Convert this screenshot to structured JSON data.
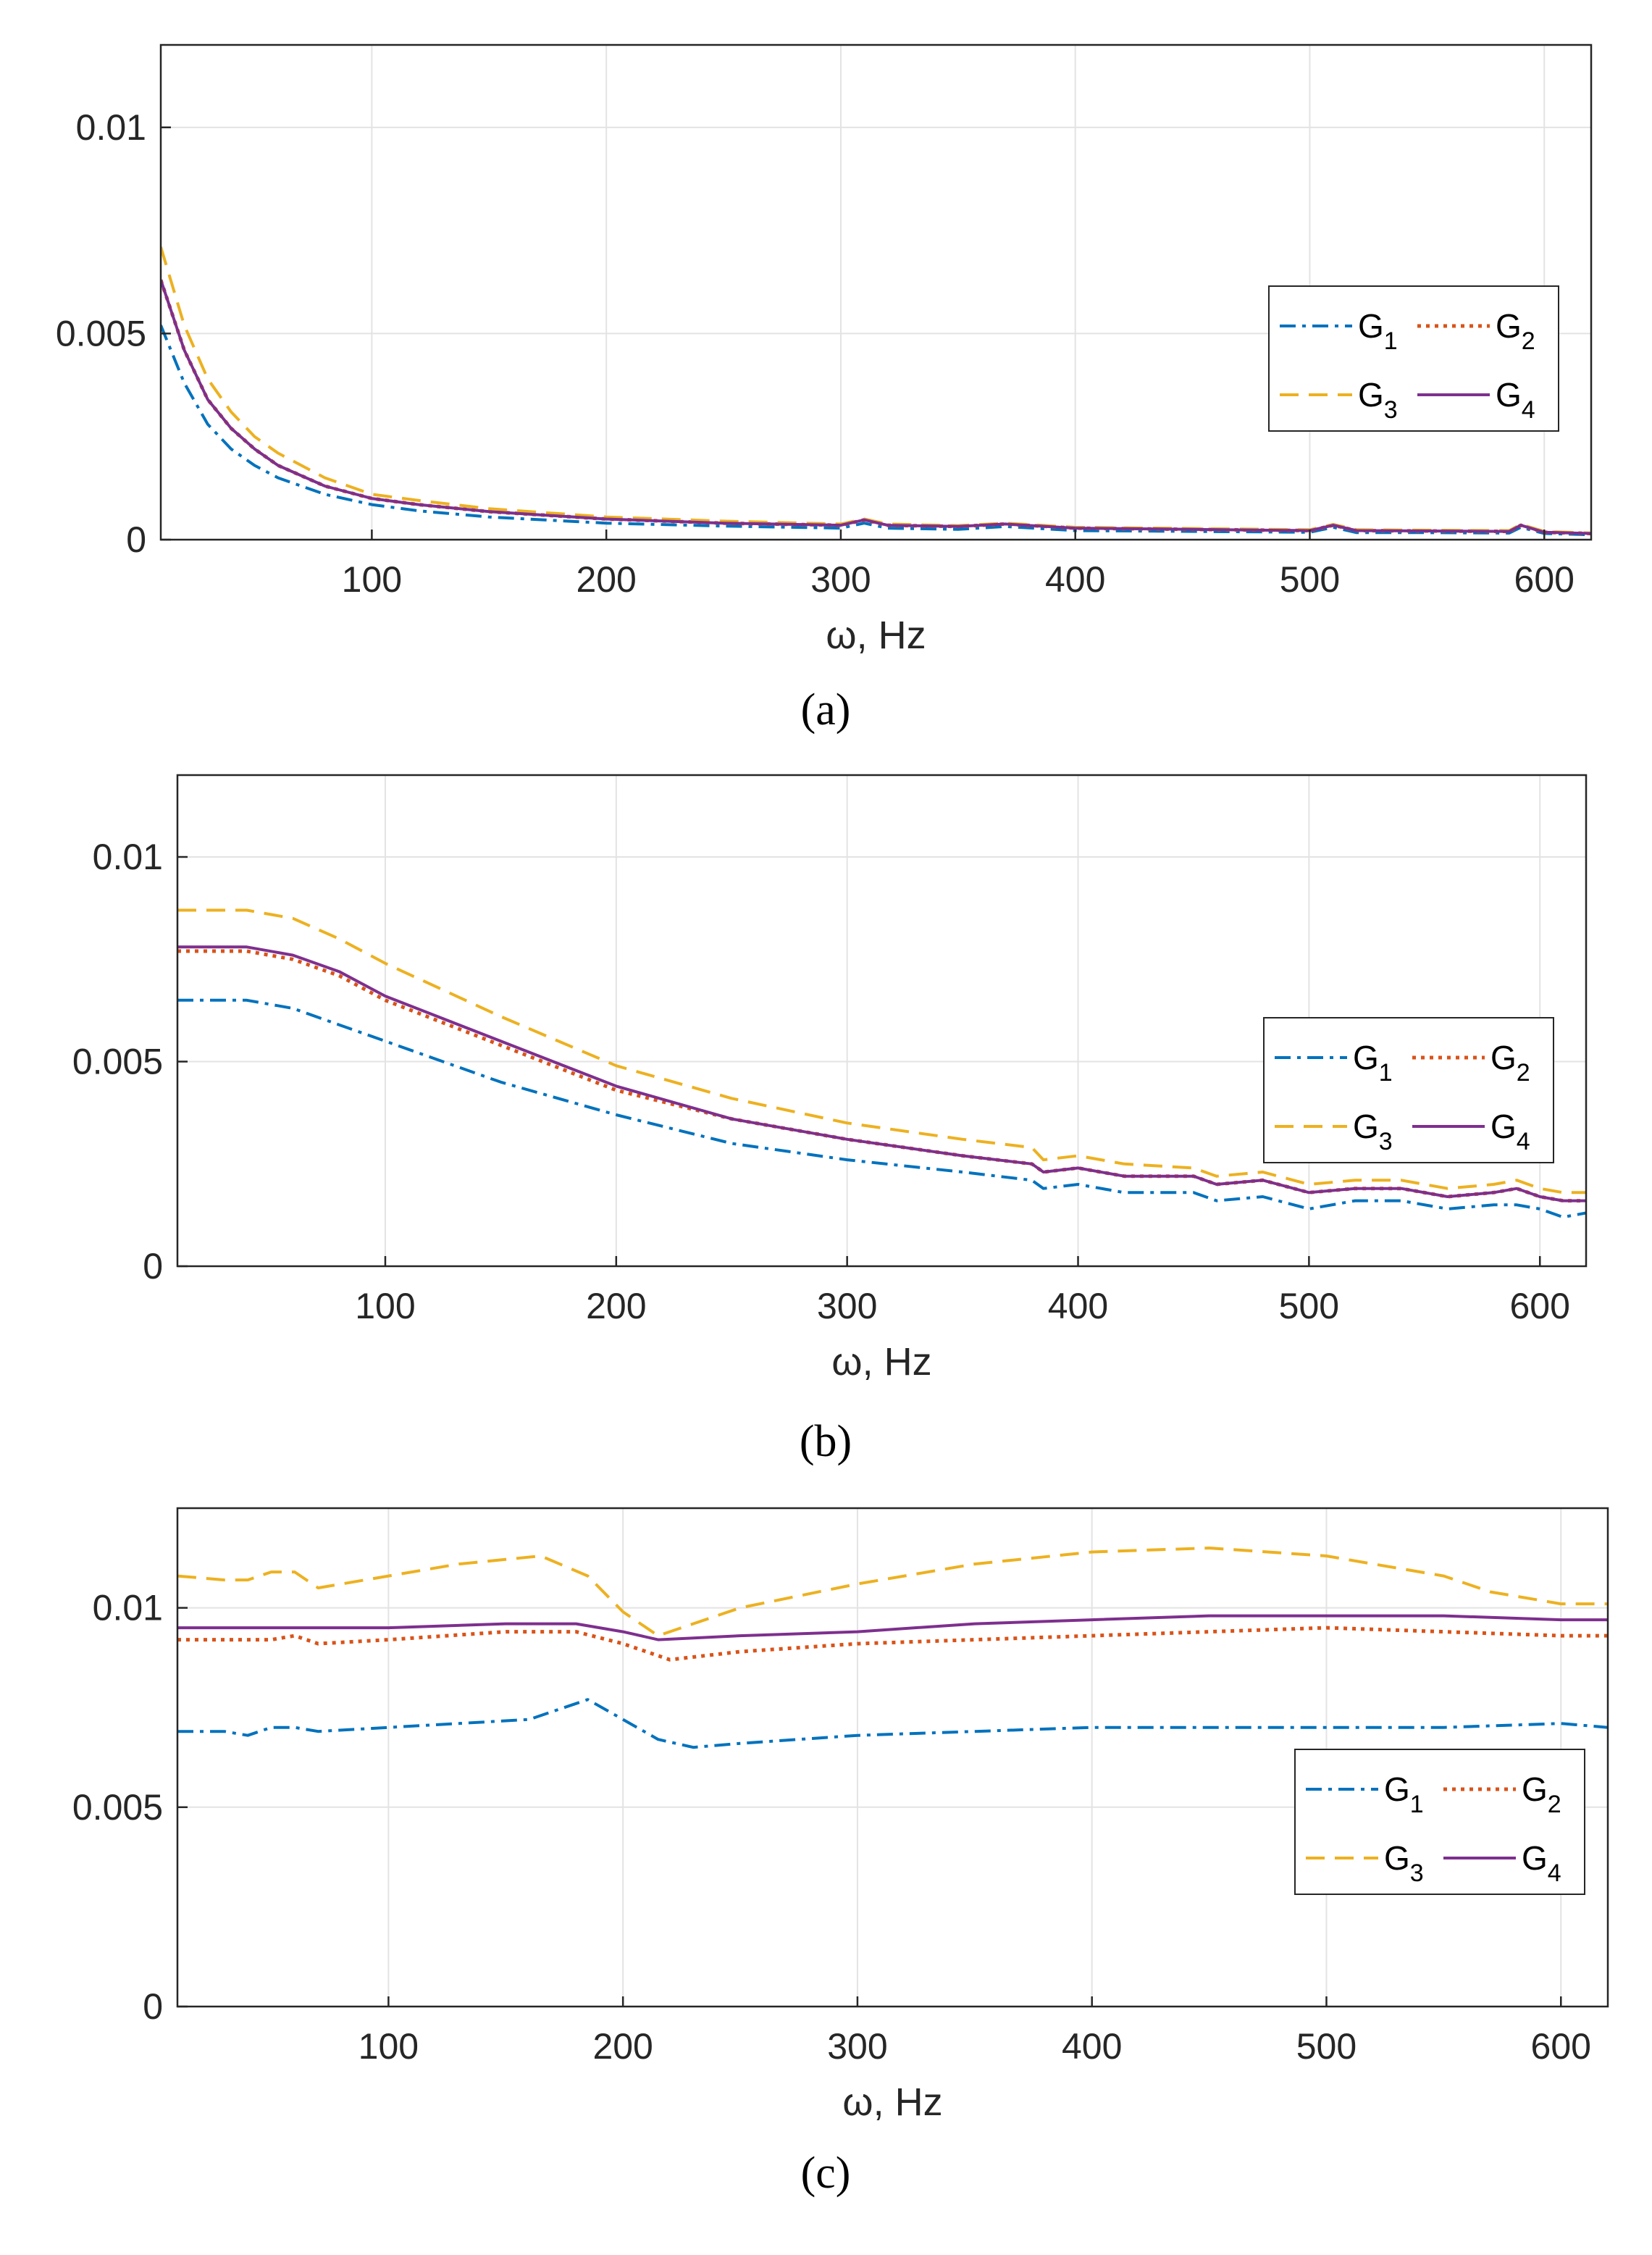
{
  "figure": {
    "captions": [
      "(a)",
      "(b)",
      "(c)"
    ],
    "x_unit": "Hz"
  },
  "chart_data": [
    {
      "type": "line",
      "panel": "a",
      "caption": "(a)",
      "xlabel": "ω, Hz",
      "xlim": [
        10,
        620
      ],
      "ylim": [
        0,
        0.012
      ],
      "xticks": [
        100,
        200,
        300,
        400,
        500,
        600
      ],
      "yticks": [
        0,
        0.005,
        0.01
      ],
      "ytick_labels": [
        "0",
        "0.005",
        "0.01"
      ],
      "grid": true,
      "legend_position": "right",
      "series": [
        {
          "name": "G",
          "sub": "1",
          "color": "#0072BD",
          "style": "dashdot",
          "x": [
            10,
            20,
            30,
            40,
            50,
            60,
            80,
            100,
            120,
            150,
            200,
            250,
            300,
            310,
            320,
            350,
            370,
            400,
            450,
            500,
            510,
            520,
            550,
            585,
            590,
            600,
            620
          ],
          "y": [
            0.0052,
            0.0038,
            0.0028,
            0.0022,
            0.0018,
            0.0015,
            0.0011,
            0.00085,
            0.0007,
            0.00055,
            0.0004,
            0.00033,
            0.00028,
            0.0004,
            0.00028,
            0.00025,
            0.00032,
            0.00022,
            0.0002,
            0.00018,
            0.0003,
            0.00017,
            0.00017,
            0.00016,
            0.0003,
            0.00015,
            0.00012
          ]
        },
        {
          "name": "G",
          "sub": "2",
          "color": "#D95319",
          "style": "dotted",
          "x": [
            10,
            20,
            30,
            40,
            50,
            60,
            80,
            100,
            120,
            150,
            200,
            250,
            300,
            310,
            320,
            350,
            370,
            400,
            450,
            500,
            510,
            520,
            550,
            585,
            590,
            600,
            620
          ],
          "y": [
            0.0063,
            0.0046,
            0.0034,
            0.0027,
            0.0022,
            0.0018,
            0.0013,
            0.001,
            0.00085,
            0.00068,
            0.0005,
            0.0004,
            0.00035,
            0.00048,
            0.00035,
            0.00032,
            0.00038,
            0.00028,
            0.00025,
            0.00022,
            0.00035,
            0.00022,
            0.00021,
            0.0002,
            0.00035,
            0.00018,
            0.00015
          ]
        },
        {
          "name": "G",
          "sub": "3",
          "color": "#EDB120",
          "style": "dashed",
          "x": [
            10,
            20,
            30,
            40,
            50,
            60,
            80,
            100,
            120,
            150,
            200,
            250,
            300,
            310,
            320,
            350,
            370,
            400,
            450,
            500,
            510,
            520,
            550,
            585,
            590,
            600,
            620
          ],
          "y": [
            0.0071,
            0.0052,
            0.0039,
            0.0031,
            0.0025,
            0.0021,
            0.0015,
            0.0011,
            0.00095,
            0.00075,
            0.00055,
            0.00045,
            0.00038,
            0.0005,
            0.00038,
            0.00034,
            0.0004,
            0.0003,
            0.00027,
            0.00024,
            0.00037,
            0.00024,
            0.00023,
            0.00022,
            0.00037,
            0.0002,
            0.00016
          ]
        },
        {
          "name": "G",
          "sub": "4",
          "color": "#7E2F8E",
          "style": "solid",
          "x": [
            10,
            20,
            30,
            40,
            50,
            60,
            80,
            100,
            120,
            150,
            200,
            250,
            300,
            310,
            320,
            350,
            370,
            400,
            450,
            500,
            510,
            520,
            550,
            585,
            590,
            600,
            620
          ],
          "y": [
            0.0063,
            0.0046,
            0.0034,
            0.0027,
            0.0022,
            0.0018,
            0.0013,
            0.001,
            0.00085,
            0.00068,
            0.0005,
            0.0004,
            0.00035,
            0.00048,
            0.00035,
            0.00032,
            0.00038,
            0.00028,
            0.00025,
            0.00022,
            0.00035,
            0.00022,
            0.00021,
            0.0002,
            0.00035,
            0.00018,
            0.00015
          ]
        }
      ]
    },
    {
      "type": "line",
      "panel": "b",
      "caption": "(b)",
      "xlabel": "ω, Hz",
      "xlim": [
        10,
        620
      ],
      "ylim": [
        0,
        0.012
      ],
      "xticks": [
        100,
        200,
        300,
        400,
        500,
        600
      ],
      "yticks": [
        0,
        0.005,
        0.01
      ],
      "ytick_labels": [
        "0",
        "0.005",
        "0.01"
      ],
      "grid": true,
      "legend_position": "right",
      "series": [
        {
          "name": "G",
          "sub": "1",
          "color": "#0072BD",
          "style": "dashdot",
          "x": [
            10,
            40,
            60,
            80,
            100,
            150,
            200,
            250,
            300,
            350,
            380,
            385,
            400,
            420,
            450,
            460,
            480,
            500,
            520,
            540,
            560,
            580,
            590,
            600,
            610,
            620
          ],
          "y": [
            0.0065,
            0.0065,
            0.0063,
            0.0059,
            0.0055,
            0.0045,
            0.0037,
            0.003,
            0.0026,
            0.0023,
            0.0021,
            0.0019,
            0.002,
            0.0018,
            0.0018,
            0.0016,
            0.0017,
            0.0014,
            0.0016,
            0.0016,
            0.0014,
            0.0015,
            0.0015,
            0.0014,
            0.0012,
            0.0013
          ]
        },
        {
          "name": "G",
          "sub": "2",
          "color": "#D95319",
          "style": "dotted",
          "x": [
            10,
            40,
            60,
            80,
            100,
            150,
            200,
            250,
            300,
            350,
            380,
            385,
            400,
            420,
            450,
            460,
            480,
            500,
            520,
            540,
            560,
            580,
            590,
            600,
            610,
            620
          ],
          "y": [
            0.0077,
            0.0077,
            0.0075,
            0.0071,
            0.0065,
            0.0054,
            0.0043,
            0.0036,
            0.0031,
            0.0027,
            0.0025,
            0.0023,
            0.0024,
            0.0022,
            0.0022,
            0.002,
            0.0021,
            0.0018,
            0.0019,
            0.0019,
            0.0017,
            0.0018,
            0.0019,
            0.0017,
            0.0016,
            0.0016
          ]
        },
        {
          "name": "G",
          "sub": "3",
          "color": "#EDB120",
          "style": "dashed",
          "x": [
            10,
            40,
            60,
            80,
            100,
            150,
            200,
            250,
            300,
            350,
            380,
            385,
            400,
            420,
            450,
            460,
            480,
            500,
            520,
            540,
            560,
            580,
            590,
            600,
            610,
            620
          ],
          "y": [
            0.0087,
            0.0087,
            0.0085,
            0.008,
            0.0074,
            0.0061,
            0.0049,
            0.0041,
            0.0035,
            0.0031,
            0.0029,
            0.0026,
            0.0027,
            0.0025,
            0.0024,
            0.0022,
            0.0023,
            0.002,
            0.0021,
            0.0021,
            0.0019,
            0.002,
            0.0021,
            0.0019,
            0.0018,
            0.0018
          ]
        },
        {
          "name": "G",
          "sub": "4",
          "color": "#7E2F8E",
          "style": "solid",
          "x": [
            10,
            40,
            60,
            80,
            100,
            150,
            200,
            250,
            300,
            350,
            380,
            385,
            400,
            420,
            450,
            460,
            480,
            500,
            520,
            540,
            560,
            580,
            590,
            600,
            610,
            620
          ],
          "y": [
            0.0078,
            0.0078,
            0.0076,
            0.0072,
            0.0066,
            0.0055,
            0.0044,
            0.0036,
            0.0031,
            0.0027,
            0.0025,
            0.0023,
            0.0024,
            0.0022,
            0.0022,
            0.002,
            0.0021,
            0.0018,
            0.0019,
            0.0019,
            0.0017,
            0.0018,
            0.0019,
            0.0017,
            0.0016,
            0.0016
          ]
        }
      ]
    },
    {
      "type": "line",
      "panel": "c",
      "caption": "(c)",
      "xlabel": "ω, Hz",
      "xlim": [
        10,
        620
      ],
      "ylim": [
        0,
        0.0125
      ],
      "xticks": [
        100,
        200,
        300,
        400,
        500,
        600
      ],
      "yticks": [
        0,
        0.005,
        0.01
      ],
      "ytick_labels": [
        "0",
        "0.005",
        "0.01"
      ],
      "grid": true,
      "legend_position": "right",
      "series": [
        {
          "name": "G",
          "sub": "1",
          "color": "#0072BD",
          "style": "dashdot",
          "x": [
            10,
            30,
            40,
            50,
            60,
            70,
            100,
            130,
            160,
            175,
            185,
            200,
            215,
            230,
            250,
            300,
            350,
            400,
            450,
            500,
            550,
            600,
            620
          ],
          "y": [
            0.0069,
            0.0069,
            0.0068,
            0.007,
            0.007,
            0.0069,
            0.007,
            0.0071,
            0.0072,
            0.0075,
            0.0077,
            0.0072,
            0.0067,
            0.0065,
            0.0066,
            0.0068,
            0.0069,
            0.007,
            0.007,
            0.007,
            0.007,
            0.0071,
            0.007
          ]
        },
        {
          "name": "G",
          "sub": "2",
          "color": "#D95319",
          "style": "dotted",
          "x": [
            10,
            50,
            60,
            70,
            100,
            150,
            180,
            200,
            220,
            250,
            300,
            350,
            400,
            450,
            500,
            550,
            600,
            620
          ],
          "y": [
            0.0092,
            0.0092,
            0.0093,
            0.0091,
            0.0092,
            0.0094,
            0.0094,
            0.0091,
            0.0087,
            0.0089,
            0.0091,
            0.0092,
            0.0093,
            0.0094,
            0.0095,
            0.0094,
            0.0093,
            0.0093
          ]
        },
        {
          "name": "G",
          "sub": "3",
          "color": "#EDB120",
          "style": "dashed",
          "x": [
            10,
            30,
            40,
            50,
            60,
            70,
            100,
            130,
            165,
            185,
            200,
            215,
            250,
            300,
            350,
            400,
            450,
            500,
            520,
            550,
            570,
            590,
            600,
            620
          ],
          "y": [
            0.0108,
            0.0107,
            0.0107,
            0.0109,
            0.0109,
            0.0105,
            0.0108,
            0.0111,
            0.0113,
            0.0108,
            0.0099,
            0.0093,
            0.01,
            0.0106,
            0.0111,
            0.0114,
            0.0115,
            0.0113,
            0.0111,
            0.0108,
            0.0104,
            0.0102,
            0.0101,
            0.0101
          ]
        },
        {
          "name": "G",
          "sub": "4",
          "color": "#7E2F8E",
          "style": "solid",
          "x": [
            10,
            50,
            100,
            150,
            180,
            200,
            215,
            250,
            300,
            350,
            400,
            450,
            500,
            550,
            600,
            620
          ],
          "y": [
            0.0095,
            0.0095,
            0.0095,
            0.0096,
            0.0096,
            0.0094,
            0.0092,
            0.0093,
            0.0094,
            0.0096,
            0.0097,
            0.0098,
            0.0098,
            0.0098,
            0.0097,
            0.0097
          ]
        }
      ]
    }
  ]
}
